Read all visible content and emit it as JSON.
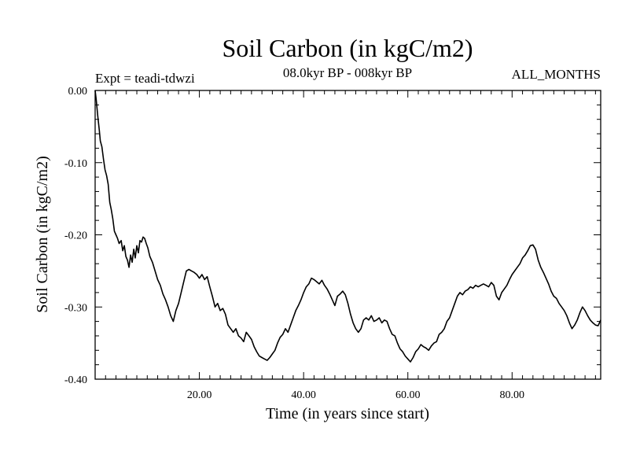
{
  "chart_data": {
    "type": "line",
    "title": "Soil Carbon (in kgC/m2)",
    "subtitle": "08.0kyr BP - 008kyr BP",
    "experiment": "Expt = teadi-tdwzi",
    "period": "ALL_MONTHS",
    "xlabel": "Time (in years since start)",
    "ylabel": "Soil Carbon (in kgC/m2)",
    "xlim": [
      0,
      97
    ],
    "ylim": [
      -0.4,
      0.0
    ],
    "x_ticks": [
      20,
      40,
      60,
      80
    ],
    "x_tick_labels": [
      "20.00",
      "40.00",
      "60.00",
      "80.00"
    ],
    "y_ticks": [
      0.0,
      -0.1,
      -0.2,
      -0.3,
      -0.4
    ],
    "y_tick_labels": [
      "0.00",
      "-0.10",
      "-0.20",
      "-0.30",
      "-0.40"
    ],
    "series": [
      {
        "name": "Soil Carbon",
        "x": [
          0,
          0.2,
          0.5,
          0.8,
          1.0,
          1.3,
          1.6,
          1.9,
          2.2,
          2.5,
          2.8,
          3.1,
          3.4,
          3.7,
          4.0,
          4.3,
          4.6,
          5.0,
          5.3,
          5.6,
          5.9,
          6.2,
          6.5,
          6.8,
          7.1,
          7.4,
          7.7,
          8.0,
          8.3,
          8.6,
          8.9,
          9.2,
          9.5,
          9.8,
          10.1,
          10.5,
          11.0,
          11.5,
          12.0,
          12.5,
          13.0,
          13.5,
          14.0,
          14.5,
          15.0,
          15.5,
          16.0,
          16.5,
          17.0,
          17.5,
          18.0,
          18.5,
          19.0,
          19.5,
          20.0,
          20.5,
          21.0,
          21.5,
          22.0,
          22.5,
          23.0,
          23.5,
          24.0,
          24.5,
          25.0,
          25.5,
          26.0,
          26.5,
          27.0,
          27.5,
          28.0,
          28.5,
          29.0,
          29.5,
          30.0,
          30.5,
          31.0,
          31.5,
          32.0,
          32.5,
          33.0,
          33.5,
          34.0,
          34.5,
          35.0,
          35.5,
          36.0,
          36.5,
          37.0,
          37.5,
          38.0,
          38.5,
          39.0,
          39.5,
          40.0,
          40.5,
          41.0,
          41.5,
          42.0,
          42.5,
          43.0,
          43.5,
          44.0,
          44.5,
          45.0,
          45.5,
          46.0,
          46.5,
          47.0,
          47.5,
          48.0,
          48.5,
          49.0,
          49.5,
          50.0,
          50.5,
          51.0,
          51.5,
          52.0,
          52.5,
          53.0,
          53.5,
          54.0,
          54.5,
          55.0,
          55.5,
          56.0,
          56.5,
          57.0,
          57.5,
          58.0,
          58.5,
          59.0,
          59.5,
          60.0,
          60.5,
          61.0,
          61.5,
          62.0,
          62.5,
          63.0,
          63.5,
          64.0,
          64.5,
          65.0,
          65.5,
          66.0,
          66.5,
          67.0,
          67.5,
          68.0,
          68.5,
          69.0,
          69.5,
          70.0,
          70.5,
          71.0,
          71.5,
          72.0,
          72.5,
          73.0,
          73.5,
          74.0,
          74.5,
          75.0,
          75.5,
          76.0,
          76.5,
          77.0,
          77.5,
          78.0,
          78.5,
          79.0,
          79.5,
          80.0,
          80.5,
          81.0,
          81.5,
          82.0,
          82.5,
          83.0,
          83.5,
          84.0,
          84.5,
          85.0,
          85.5,
          86.0,
          86.5,
          87.0,
          87.5,
          88.0,
          88.5,
          89.0,
          89.5,
          90.0,
          90.5,
          91.0,
          91.5,
          92.0,
          92.5,
          93.0,
          93.5,
          94.0,
          94.5,
          95.0,
          95.5,
          96.0,
          96.5,
          97.0
        ],
        "values": [
          0.0,
          -0.012,
          -0.035,
          -0.055,
          -0.07,
          -0.078,
          -0.095,
          -0.11,
          -0.118,
          -0.13,
          -0.155,
          -0.165,
          -0.178,
          -0.195,
          -0.2,
          -0.205,
          -0.212,
          -0.208,
          -0.222,
          -0.215,
          -0.23,
          -0.235,
          -0.245,
          -0.228,
          -0.238,
          -0.22,
          -0.232,
          -0.215,
          -0.225,
          -0.208,
          -0.21,
          -0.203,
          -0.205,
          -0.212,
          -0.218,
          -0.23,
          -0.238,
          -0.25,
          -0.262,
          -0.27,
          -0.282,
          -0.29,
          -0.3,
          -0.312,
          -0.32,
          -0.305,
          -0.295,
          -0.28,
          -0.265,
          -0.25,
          -0.248,
          -0.25,
          -0.252,
          -0.255,
          -0.26,
          -0.255,
          -0.262,
          -0.258,
          -0.272,
          -0.285,
          -0.3,
          -0.295,
          -0.305,
          -0.302,
          -0.31,
          -0.325,
          -0.33,
          -0.335,
          -0.33,
          -0.34,
          -0.343,
          -0.348,
          -0.335,
          -0.34,
          -0.345,
          -0.355,
          -0.362,
          -0.368,
          -0.37,
          -0.372,
          -0.374,
          -0.37,
          -0.365,
          -0.36,
          -0.35,
          -0.342,
          -0.338,
          -0.33,
          -0.335,
          -0.325,
          -0.315,
          -0.305,
          -0.298,
          -0.29,
          -0.28,
          -0.272,
          -0.268,
          -0.26,
          -0.262,
          -0.265,
          -0.268,
          -0.263,
          -0.27,
          -0.275,
          -0.282,
          -0.29,
          -0.298,
          -0.285,
          -0.282,
          -0.278,
          -0.283,
          -0.295,
          -0.31,
          -0.322,
          -0.33,
          -0.335,
          -0.33,
          -0.318,
          -0.315,
          -0.318,
          -0.312,
          -0.32,
          -0.318,
          -0.315,
          -0.322,
          -0.318,
          -0.32,
          -0.33,
          -0.338,
          -0.34,
          -0.35,
          -0.358,
          -0.362,
          -0.368,
          -0.372,
          -0.376,
          -0.37,
          -0.362,
          -0.358,
          -0.352,
          -0.355,
          -0.357,
          -0.36,
          -0.354,
          -0.35,
          -0.348,
          -0.338,
          -0.335,
          -0.33,
          -0.32,
          -0.315,
          -0.305,
          -0.295,
          -0.285,
          -0.28,
          -0.283,
          -0.278,
          -0.276,
          -0.272,
          -0.274,
          -0.27,
          -0.272,
          -0.27,
          -0.268,
          -0.27,
          -0.272,
          -0.266,
          -0.27,
          -0.285,
          -0.29,
          -0.28,
          -0.275,
          -0.27,
          -0.262,
          -0.255,
          -0.25,
          -0.245,
          -0.24,
          -0.232,
          -0.228,
          -0.222,
          -0.215,
          -0.214,
          -0.22,
          -0.235,
          -0.245,
          -0.252,
          -0.26,
          -0.268,
          -0.278,
          -0.285,
          -0.288,
          -0.295,
          -0.3,
          -0.305,
          -0.312,
          -0.322,
          -0.33,
          -0.325,
          -0.318,
          -0.308,
          -0.3,
          -0.305,
          -0.312,
          -0.318,
          -0.322,
          -0.325,
          -0.326,
          -0.318
        ]
      }
    ]
  }
}
